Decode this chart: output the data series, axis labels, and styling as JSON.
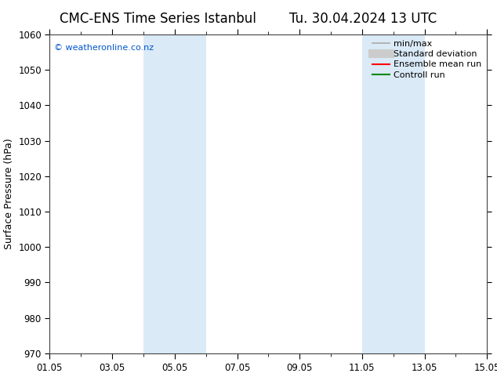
{
  "title": "CMC-ENS Time Series Istanbul",
  "title2": "Tu. 30.04.2024 13 UTC",
  "ylabel": "Surface Pressure (hPa)",
  "ylim": [
    970,
    1060
  ],
  "yticks": [
    970,
    980,
    990,
    1000,
    1010,
    1020,
    1030,
    1040,
    1050,
    1060
  ],
  "xtick_positions": [
    0,
    2,
    4,
    6,
    8,
    10,
    12,
    14
  ],
  "xtick_labels": [
    "01.05",
    "03.05",
    "05.05",
    "07.05",
    "09.05",
    "11.05",
    "13.05",
    "15.05"
  ],
  "xlim": [
    0,
    14
  ],
  "shaded_bands": [
    {
      "xmin": 3.0,
      "xmax": 5.0,
      "color": "#daeaf7"
    },
    {
      "xmin": 10.0,
      "xmax": 12.0,
      "color": "#daeaf7"
    }
  ],
  "watermark": "© weatheronline.co.nz",
  "watermark_color": "#0055cc",
  "background_color": "#ffffff",
  "legend_items": [
    {
      "label": "min/max",
      "color": "#aaaaaa",
      "lw": 1.2,
      "type": "line"
    },
    {
      "label": "Standard deviation",
      "color": "#cccccc",
      "lw": 8,
      "type": "line"
    },
    {
      "label": "Ensemble mean run",
      "color": "#ff0000",
      "lw": 1.5,
      "type": "line"
    },
    {
      "label": "Controll run",
      "color": "#008800",
      "lw": 1.5,
      "type": "line"
    }
  ],
  "grid_color": "#cccccc",
  "title_fontsize": 12,
  "axis_fontsize": 9,
  "tick_fontsize": 8.5,
  "legend_fontsize": 8
}
